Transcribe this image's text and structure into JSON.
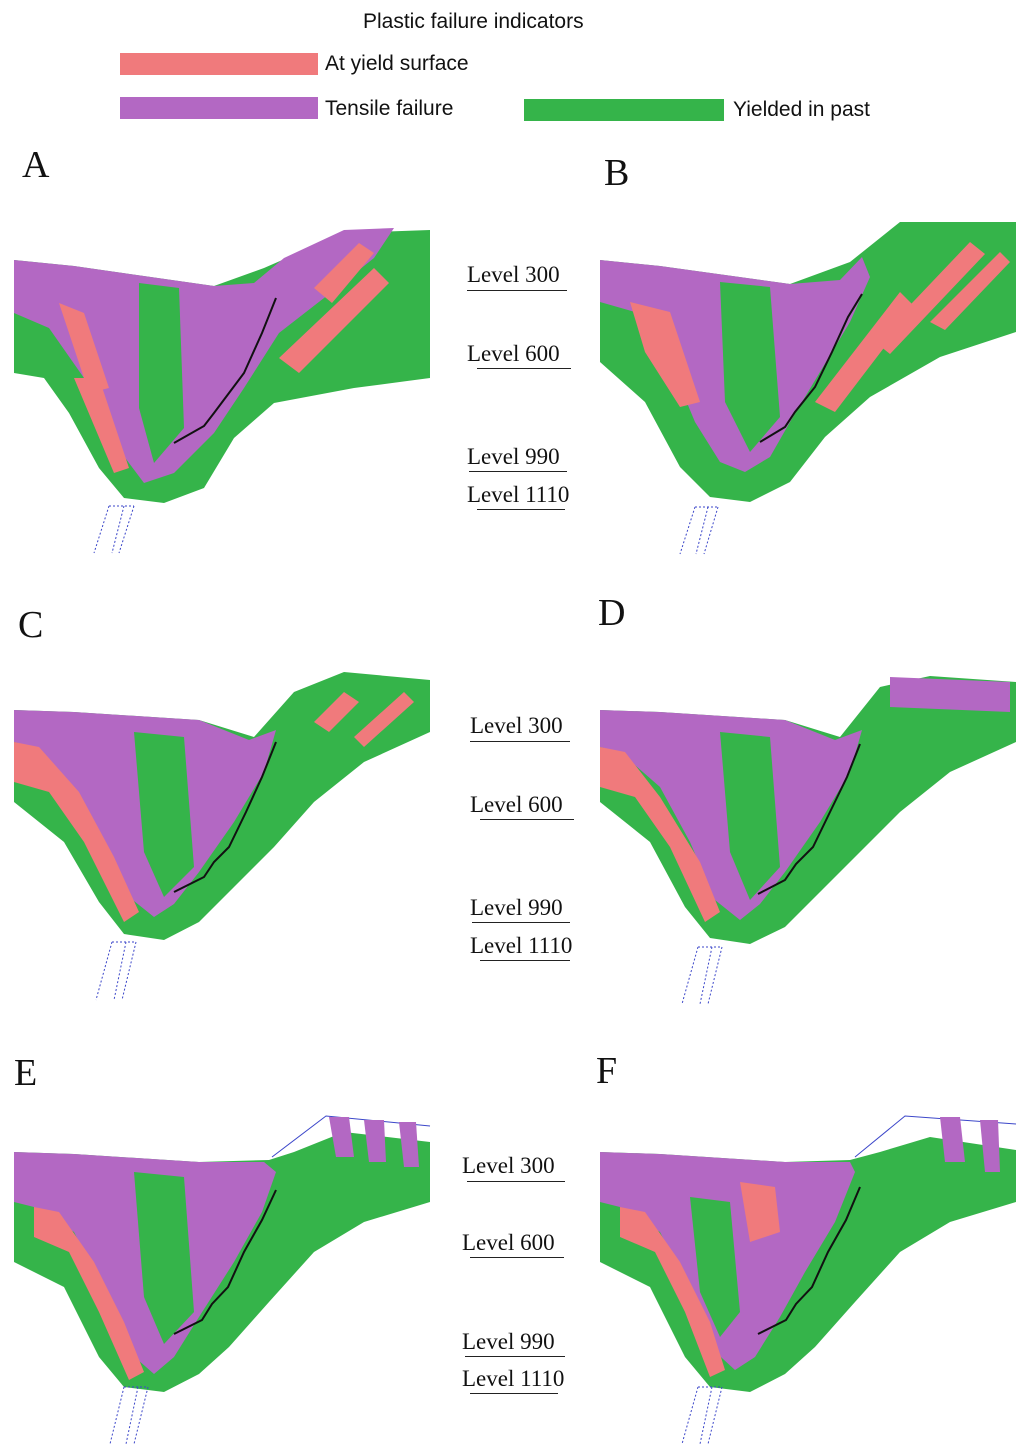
{
  "legend": {
    "title": "Plastic failure indicators",
    "items": [
      {
        "label": "At yield surface",
        "color": "#f07a7c"
      },
      {
        "label": "Tensile failure",
        "color": "#b368c3"
      },
      {
        "label": "Yielded in past",
        "color": "#35b44a"
      }
    ]
  },
  "panels": [
    {
      "letter": "A",
      "levels": [
        "Level 300",
        "Level 600",
        "Level 990",
        "Level 1110"
      ]
    },
    {
      "letter": "B"
    },
    {
      "letter": "C",
      "levels": [
        "Level 300",
        "Level 600",
        "Level 990",
        "Level 1110"
      ]
    },
    {
      "letter": "D"
    },
    {
      "letter": "E",
      "levels": [
        "Level 300",
        "Level 600",
        "Level 990",
        "Level 1110"
      ]
    },
    {
      "letter": "F"
    }
  ],
  "colors": {
    "yield": "#f07a7c",
    "tensile": "#b368c3",
    "past": "#35b44a",
    "line": "#111111",
    "dotted": "#3b46c9"
  }
}
